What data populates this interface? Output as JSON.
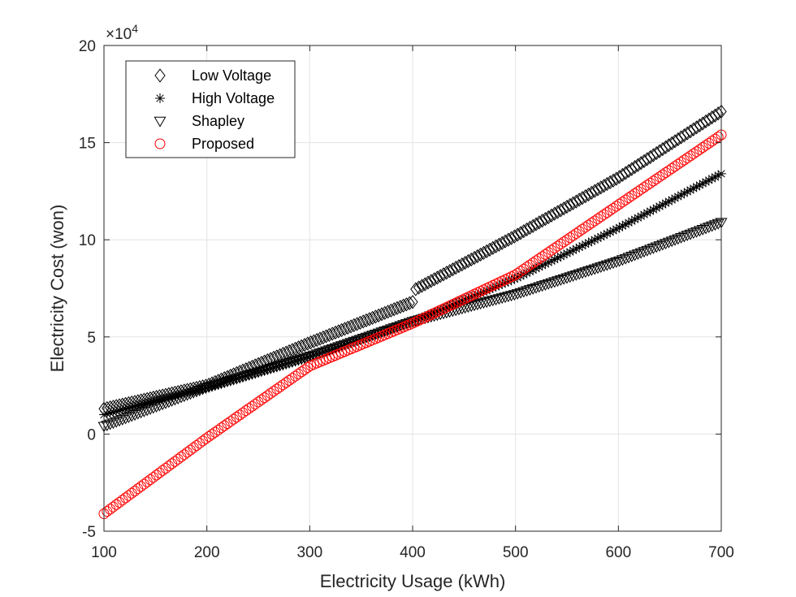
{
  "chart_data": {
    "type": "scatter",
    "xlabel": "Electricity Usage (kWh)",
    "ylabel": "Electricity Cost (won)",
    "xlim": [
      100,
      700
    ],
    "ylim": [
      -50000,
      200000
    ],
    "x_ticks": [
      "100",
      "200",
      "300",
      "400",
      "500",
      "600",
      "700"
    ],
    "y_ticks": [
      "-5",
      "0",
      "5",
      "10",
      "15",
      "20"
    ],
    "y_multiplier": {
      "base": "×10",
      "exponent": "4"
    },
    "grid": true,
    "legend_position": "top-left",
    "series": [
      {
        "name": "Low Voltage",
        "marker": "diamond",
        "color": "#000000",
        "points": [
          [
            100,
            13000
          ],
          [
            200,
            25000
          ],
          [
            300,
            47000
          ],
          [
            400,
            68000
          ],
          [
            401,
            74000
          ],
          [
            500,
            102000
          ],
          [
            600,
            132000
          ],
          [
            700,
            166000
          ]
        ]
      },
      {
        "name": "High Voltage",
        "marker": "asterisk",
        "color": "#000000",
        "points": [
          [
            100,
            10000
          ],
          [
            200,
            24000
          ],
          [
            300,
            40000
          ],
          [
            400,
            58000
          ],
          [
            500,
            80000
          ],
          [
            600,
            106000
          ],
          [
            700,
            134000
          ]
        ]
      },
      {
        "name": "Shapley",
        "marker": "triangle-down",
        "color": "#000000",
        "points": [
          [
            100,
            4000
          ],
          [
            200,
            24000
          ],
          [
            300,
            40000
          ],
          [
            400,
            58000
          ],
          [
            500,
            72000
          ],
          [
            600,
            89000
          ],
          [
            700,
            109000
          ]
        ]
      },
      {
        "name": "Proposed",
        "marker": "circle",
        "color": "#ff0000",
        "points": [
          [
            100,
            -41000
          ],
          [
            200,
            -2000
          ],
          [
            300,
            35000
          ],
          [
            400,
            57000
          ],
          [
            500,
            82000
          ],
          [
            600,
            118000
          ],
          [
            700,
            154000
          ]
        ]
      }
    ]
  }
}
